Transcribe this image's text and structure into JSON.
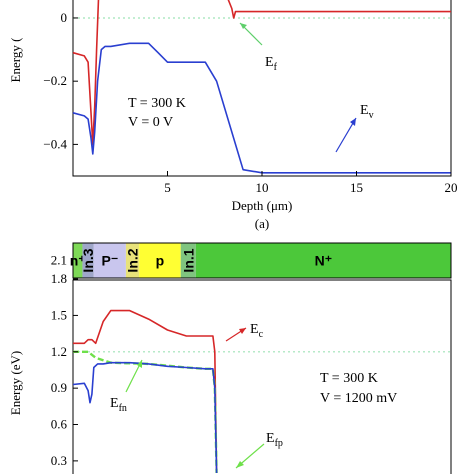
{
  "chart_data": [
    {
      "type": "line",
      "xlabel": "Depth (μm)",
      "ylabel": "Energy (",
      "caption": "(a)",
      "xlim": [
        0,
        20
      ],
      "ylim": [
        -0.5,
        0.06
      ],
      "xticks": [
        {
          "v": 5,
          "label": "5"
        },
        {
          "v": 10,
          "label": "10"
        },
        {
          "v": 15,
          "label": "15"
        },
        {
          "v": 20,
          "label": "20"
        }
      ],
      "yticks": [
        {
          "v": 0,
          "label": "0"
        },
        {
          "v": -0.2,
          "label": "−0.2"
        },
        {
          "v": -0.4,
          "label": "−0.4"
        }
      ],
      "annotations": [
        {
          "text": "T = 300 K"
        },
        {
          "text": "V = 0 V"
        }
      ],
      "series": [
        {
          "name": "Ec",
          "color": "#d62728",
          "x": [
            0,
            0.4,
            0.7,
            0.9,
            1.0,
            1.1,
            1.2,
            1.35,
            7.0,
            8.2,
            8.4,
            8.5,
            8.6,
            9.0,
            20
          ],
          "y": [
            0.06,
            0.06,
            0.06,
            0.06,
            0.06,
            0.06,
            0.06,
            0.06,
            0.06,
            0.06,
            0.03,
            0.0,
            0.02,
            0.02,
            0.02
          ]
        },
        {
          "name": "Ec (lower branch)",
          "color": "#d62728",
          "x": [
            0,
            0.6,
            0.8,
            0.95,
            1.05,
            1.15,
            1.25,
            1.35
          ],
          "y": [
            -0.11,
            -0.12,
            -0.14,
            -0.3,
            -0.4,
            -0.28,
            -0.1,
            0.06
          ]
        },
        {
          "name": "Ef",
          "color": "#5ecf6b",
          "dashed": true,
          "x": [
            0,
            20
          ],
          "y": [
            0,
            0
          ]
        },
        {
          "name": "Ev",
          "color": "#2a3fd0",
          "x": [
            0,
            0.6,
            0.8,
            0.95,
            1.05,
            1.15,
            1.3,
            1.5,
            1.7,
            2.0,
            3.0,
            4.0,
            4.5,
            5.0,
            7.0,
            7.6,
            9.0,
            10.0,
            20
          ],
          "y": [
            -0.3,
            -0.31,
            -0.32,
            -0.38,
            -0.43,
            -0.36,
            -0.2,
            -0.1,
            -0.09,
            -0.09,
            -0.08,
            -0.08,
            -0.11,
            -0.14,
            -0.14,
            -0.2,
            -0.48,
            -0.49,
            -0.49
          ]
        }
      ]
    },
    {
      "type": "line",
      "xlabel": "",
      "ylabel": "Energy (eV)",
      "caption": "",
      "xlim": [
        0,
        20
      ],
      "ylim": [
        0.2,
        1.85
      ],
      "yticks": [
        {
          "v": 1.8,
          "label": "1.8"
        },
        {
          "v": 1.5,
          "label": "1.5"
        },
        {
          "v": 1.2,
          "label": "1.2"
        },
        {
          "v": 0.9,
          "label": "0.9"
        },
        {
          "v": 0.6,
          "label": "0.6"
        },
        {
          "v": 0.3,
          "label": "0.3"
        }
      ],
      "top_tick": {
        "label": "2.1"
      },
      "annotations": [
        {
          "text": "T = 300 K"
        },
        {
          "text": "V = 1200 mV"
        }
      ],
      "layers": [
        {
          "label": "n⁺",
          "from": 0,
          "to": 0.5,
          "color": "#7ed957"
        },
        {
          "label": "In.3",
          "from": 0.5,
          "to": 1.1,
          "color": "#9fa6c9"
        },
        {
          "label": "P⁻",
          "from": 1.1,
          "to": 2.8,
          "color": "#c9c6ee"
        },
        {
          "label": "In.2",
          "from": 2.8,
          "to": 3.5,
          "color": "#e8e27a"
        },
        {
          "label": "p",
          "from": 3.5,
          "to": 5.7,
          "color": "#ffff33"
        },
        {
          "label": "In.1",
          "from": 5.7,
          "to": 6.5,
          "color": "#7fc47f"
        },
        {
          "label": "N⁺",
          "from": 6.5,
          "to": 20,
          "color": "#4cc83a"
        }
      ],
      "series": [
        {
          "name": "Ec",
          "color": "#d62728",
          "x": [
            0,
            0.6,
            0.8,
            1.0,
            1.2,
            1.6,
            2.0,
            3.0,
            4.0,
            5.0,
            6.0,
            7.0,
            7.4,
            7.5,
            7.6
          ],
          "y": [
            1.27,
            1.27,
            1.3,
            1.3,
            1.27,
            1.45,
            1.54,
            1.54,
            1.47,
            1.38,
            1.33,
            1.33,
            1.33,
            1.2,
            0.2
          ]
        },
        {
          "name": "Efn",
          "color": "#6ee04a",
          "dashed": true,
          "x": [
            0,
            0.8,
            1.2,
            2.0,
            4.0,
            6.0,
            7.0,
            7.4,
            7.5,
            7.6
          ],
          "y": [
            1.2,
            1.2,
            1.15,
            1.11,
            1.1,
            1.07,
            1.06,
            1.06,
            0.9,
            0.2
          ]
        },
        {
          "name": "Efp",
          "color": "#6ee04a",
          "dashed": true,
          "x": [
            7.4,
            8.0,
            12.0,
            20.0
          ],
          "y": [
            1.2,
            1.2,
            1.2,
            1.2
          ]
        },
        {
          "name": "Ev",
          "color": "#2a3fd0",
          "x": [
            0,
            0.6,
            0.8,
            0.9,
            1.0,
            1.1,
            1.3,
            1.6,
            2.0,
            3.0,
            4.0,
            5.0,
            6.0,
            7.0,
            7.4,
            7.5,
            7.6
          ],
          "y": [
            0.93,
            0.94,
            0.88,
            0.78,
            0.85,
            1.07,
            1.1,
            1.1,
            1.11,
            1.11,
            1.1,
            1.08,
            1.07,
            1.06,
            1.06,
            0.9,
            0.2
          ]
        }
      ]
    }
  ],
  "labels": {
    "top_ec_arrow": "",
    "ef": "E",
    "ef_sub": "f",
    "ev": "E",
    "ev_sub": "v",
    "ec": "E",
    "ec_sub": "c",
    "efn": "E",
    "efn_sub": "fn",
    "efp": "E",
    "efp_sub": "fp"
  },
  "colors": {
    "ec": "#d62728",
    "ev": "#2a3fd0",
    "ef": "#5ecf6b",
    "efn": "#6ee04a"
  }
}
